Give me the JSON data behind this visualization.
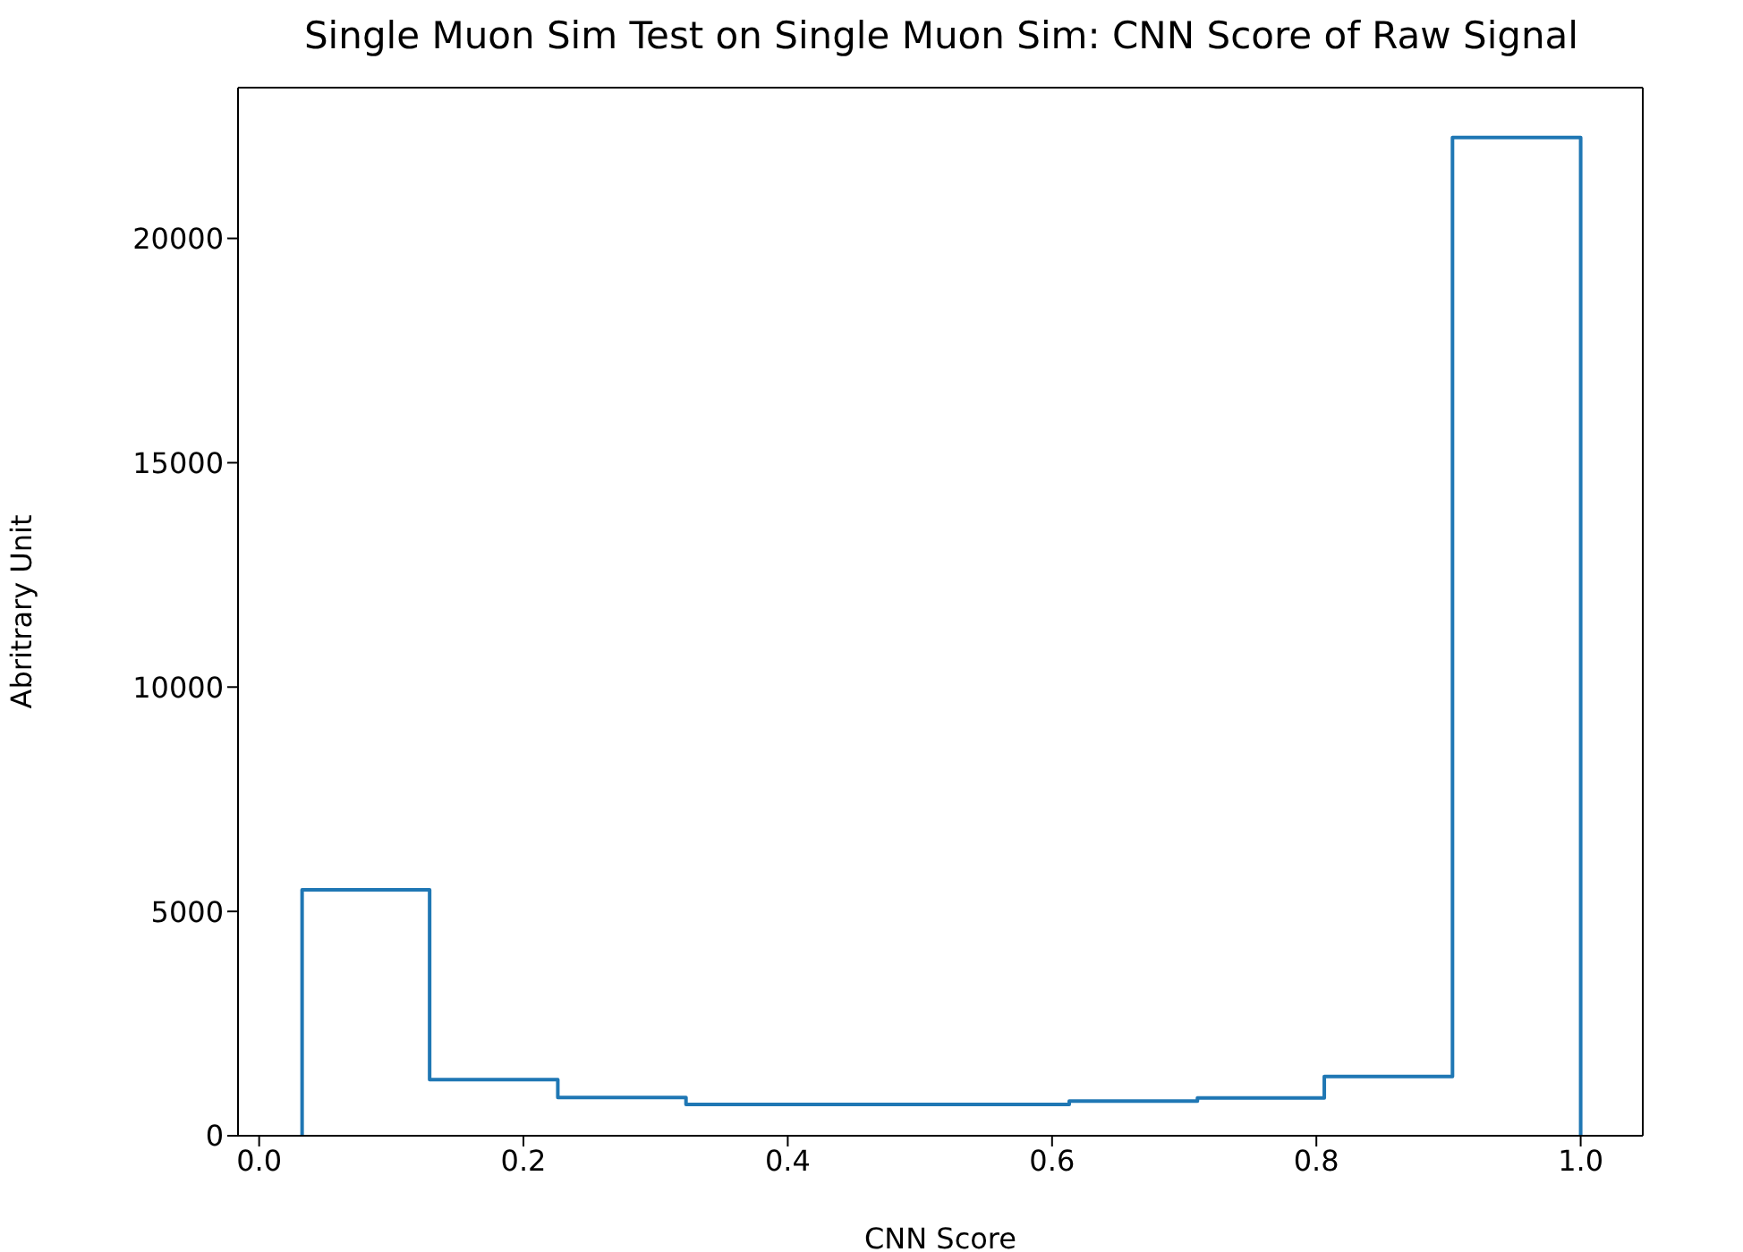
{
  "chart_data": {
    "type": "histogram",
    "title": "Single Muon Sim Test on Single Muon Sim: CNN Score of Raw Signal",
    "xlabel": "CNN Score",
    "ylabel": "Abritrary Unit",
    "color": "#1f77b4",
    "bins": [
      0.0325,
      0.129,
      0.226,
      0.323,
      0.419,
      0.516,
      0.613,
      0.71,
      0.806,
      0.903,
      1.0
    ],
    "values": [
      5480,
      1250,
      850,
      700,
      700,
      700,
      770,
      840,
      1320,
      22250
    ],
    "xlim": [
      -0.016,
      1.047
    ],
    "xticks": [
      {
        "value": 0,
        "label": "0.0"
      },
      {
        "value": 0.2,
        "label": "0.2"
      },
      {
        "value": 0.4,
        "label": "0.4"
      },
      {
        "value": 0.6,
        "label": "0.6"
      },
      {
        "value": 0.8,
        "label": "0.8"
      },
      {
        "value": 1,
        "label": "1.0"
      }
    ],
    "ylim": [
      0,
      23360
    ],
    "yticks": [
      0,
      5000,
      10000,
      15000,
      20000
    ]
  }
}
